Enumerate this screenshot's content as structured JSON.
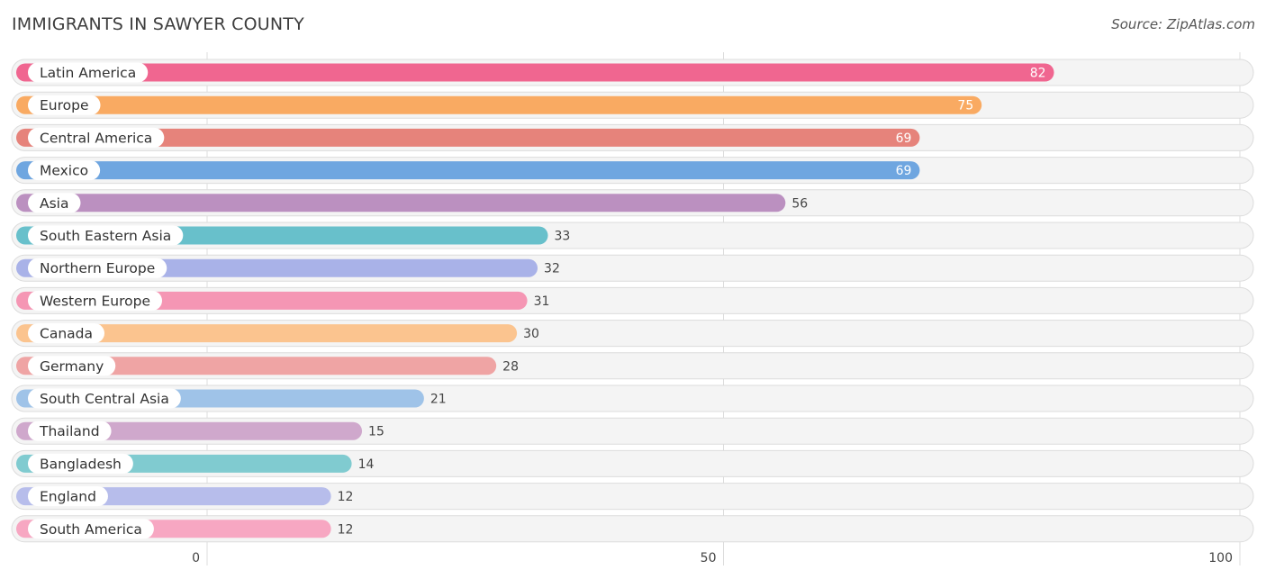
{
  "header": {
    "title": "IMMIGRANTS IN SAWYER COUNTY",
    "source": "Source: ZipAtlas.com"
  },
  "chart_data": {
    "type": "bar",
    "orientation": "horizontal",
    "title": "IMMIGRANTS IN SAWYER COUNTY",
    "xlabel": "",
    "ylabel": "",
    "xlim": [
      0,
      100
    ],
    "xticks": [
      0,
      50,
      100
    ],
    "xtick_labels": [
      "0",
      "50",
      "100"
    ],
    "grid": true,
    "categories": [
      "Latin America",
      "Europe",
      "Central America",
      "Mexico",
      "Asia",
      "South Eastern Asia",
      "Northern Europe",
      "Western Europe",
      "Canada",
      "Germany",
      "South Central Asia",
      "Thailand",
      "Bangladesh",
      "England",
      "South America"
    ],
    "values": [
      82,
      75,
      69,
      69,
      56,
      33,
      32,
      31,
      30,
      28,
      21,
      15,
      14,
      12,
      12
    ],
    "colors": [
      "#f06690",
      "#f9aa62",
      "#e6837b",
      "#6fa6e0",
      "#bb90c0",
      "#68c0cb",
      "#a9b2e8",
      "#f596b4",
      "#fbc48f",
      "#efa4a4",
      "#9fc3e8",
      "#cfa8cc",
      "#80cbd0",
      "#b7bdeb",
      "#f7a7c2"
    ]
  }
}
